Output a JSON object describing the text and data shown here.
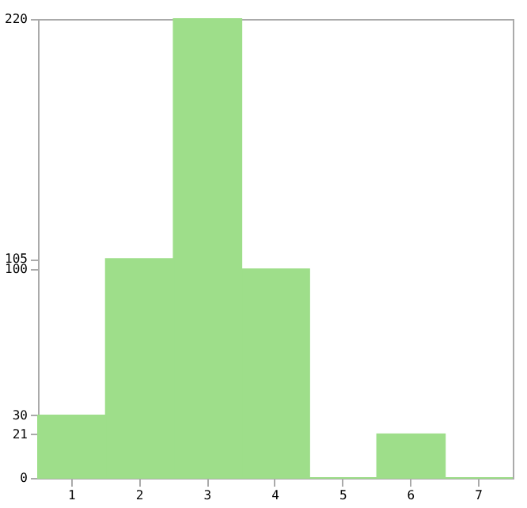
{
  "chart_data": {
    "type": "bar",
    "categories": [
      "1",
      "2",
      "3",
      "4",
      "5",
      "6",
      "7"
    ],
    "values": [
      30,
      105,
      220,
      100,
      0,
      21,
      0
    ],
    "color": "#9ede8a",
    "ylim": [
      0,
      220
    ],
    "yticks": [
      0,
      21,
      30,
      100,
      105,
      220
    ],
    "grid": false
  }
}
